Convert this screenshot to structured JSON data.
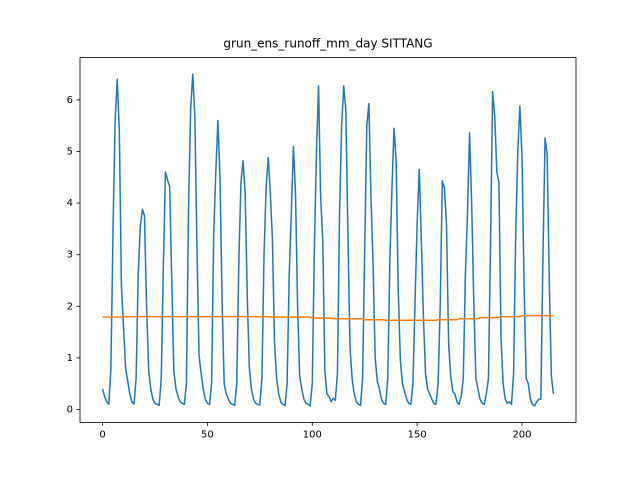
{
  "chart_data": {
    "type": "line",
    "title": "grun_ens_runoff_mm_day SITTANG",
    "x": [
      0,
      1,
      2,
      3,
      4,
      5,
      6,
      7,
      8,
      9,
      10,
      11,
      12,
      13,
      14,
      15,
      16,
      17,
      18,
      19,
      20,
      21,
      22,
      23,
      24,
      25,
      26,
      27,
      28,
      29,
      30,
      31,
      32,
      33,
      34,
      35,
      36,
      37,
      38,
      39,
      40,
      41,
      42,
      43,
      44,
      45,
      46,
      47,
      48,
      49,
      50,
      51,
      52,
      53,
      54,
      55,
      56,
      57,
      58,
      59,
      60,
      61,
      62,
      63,
      64,
      65,
      66,
      67,
      68,
      69,
      70,
      71,
      72,
      73,
      74,
      75,
      76,
      77,
      78,
      79,
      80,
      81,
      82,
      83,
      84,
      85,
      86,
      87,
      88,
      89,
      90,
      91,
      92,
      93,
      94,
      95,
      96,
      97,
      98,
      99,
      100,
      101,
      102,
      103,
      104,
      105,
      106,
      107,
      108,
      109,
      110,
      111,
      112,
      113,
      114,
      115,
      116,
      117,
      118,
      119,
      120,
      121,
      122,
      123,
      124,
      125,
      126,
      127,
      128,
      129,
      130,
      131,
      132,
      133,
      134,
      135,
      136,
      137,
      138,
      139,
      140,
      141,
      142,
      143,
      144,
      145,
      146,
      147,
      148,
      149,
      150,
      151,
      152,
      153,
      154,
      155,
      156,
      157,
      158,
      159,
      160,
      161,
      162,
      163,
      164,
      165,
      166,
      167,
      168,
      169,
      170,
      171,
      172,
      173,
      174,
      175,
      176,
      177,
      178,
      179,
      180,
      181,
      182,
      183,
      184,
      185,
      186,
      187,
      188,
      189,
      190,
      191,
      192,
      193,
      194,
      195,
      196,
      197,
      198,
      199,
      200,
      201,
      202,
      203,
      204,
      205,
      206,
      207,
      208,
      209,
      210,
      211,
      212,
      213,
      214,
      215
    ],
    "series": [
      {
        "color": "#1f77b4",
        "values": [
          0.4,
          0.25,
          0.15,
          0.1,
          0.8,
          3.5,
          5.6,
          6.4,
          5.4,
          2.4,
          1.6,
          0.8,
          0.55,
          0.3,
          0.15,
          0.1,
          0.6,
          2.6,
          3.55,
          3.88,
          3.75,
          2.0,
          0.75,
          0.4,
          0.2,
          0.12,
          0.1,
          0.08,
          0.6,
          2.8,
          4.6,
          4.45,
          4.32,
          2.5,
          0.75,
          0.4,
          0.25,
          0.15,
          0.12,
          0.1,
          0.5,
          3.9,
          5.8,
          6.5,
          5.7,
          3.2,
          1.05,
          0.7,
          0.4,
          0.2,
          0.12,
          0.1,
          0.5,
          3.4,
          4.6,
          5.6,
          4.5,
          2.1,
          0.5,
          0.3,
          0.2,
          0.12,
          0.1,
          0.08,
          0.5,
          2.9,
          4.4,
          4.82,
          4.2,
          2.2,
          0.8,
          0.4,
          0.2,
          0.12,
          0.1,
          0.09,
          0.6,
          3.0,
          4.3,
          4.88,
          4.2,
          3.3,
          1.3,
          0.6,
          0.3,
          0.15,
          0.1,
          0.08,
          0.5,
          2.6,
          3.8,
          5.1,
          4.2,
          2.0,
          0.65,
          0.4,
          0.2,
          0.12,
          0.1,
          0.07,
          0.5,
          3.1,
          5.0,
          6.27,
          4.1,
          3.3,
          0.75,
          0.3,
          0.25,
          0.15,
          0.22,
          0.18,
          0.7,
          3.8,
          5.5,
          6.27,
          5.8,
          3.4,
          1.2,
          0.6,
          0.3,
          0.15,
          0.1,
          0.08,
          0.6,
          3.1,
          5.5,
          5.93,
          4.1,
          2.8,
          1.0,
          0.55,
          0.4,
          0.2,
          0.12,
          0.1,
          0.6,
          2.9,
          4.3,
          5.45,
          4.8,
          2.3,
          0.95,
          0.5,
          0.35,
          0.2,
          0.12,
          0.1,
          0.5,
          2.1,
          3.6,
          4.65,
          3.3,
          1.8,
          0.7,
          0.4,
          0.3,
          0.2,
          0.12,
          0.1,
          0.5,
          2.0,
          4.43,
          4.3,
          3.6,
          1.3,
          0.65,
          0.35,
          0.3,
          0.15,
          0.1,
          0.25,
          0.6,
          2.6,
          3.8,
          5.36,
          4.0,
          2.1,
          0.6,
          0.4,
          0.2,
          0.12,
          0.1,
          0.3,
          0.6,
          3.2,
          6.16,
          5.7,
          4.6,
          4.4,
          1.4,
          0.5,
          0.2,
          0.12,
          0.15,
          0.1,
          0.7,
          3.4,
          5.0,
          5.88,
          4.9,
          2.4,
          0.6,
          0.5,
          0.2,
          0.1,
          0.07,
          0.15,
          0.2,
          0.2,
          3.0,
          5.26,
          4.95,
          2.5,
          0.65,
          0.3
        ]
      },
      {
        "color": "#ff7f0e",
        "values": [
          1.79,
          1.79,
          1.79,
          1.79,
          1.79,
          1.79,
          1.79,
          1.79,
          1.79,
          1.79,
          1.8,
          1.8,
          1.8,
          1.8,
          1.8,
          1.8,
          1.8,
          1.8,
          1.8,
          1.8,
          1.8,
          1.8,
          1.8,
          1.8,
          1.8,
          1.8,
          1.8,
          1.8,
          1.8,
          1.8,
          1.8,
          1.8,
          1.8,
          1.8,
          1.8,
          1.8,
          1.8,
          1.8,
          1.8,
          1.8,
          1.8,
          1.8,
          1.8,
          1.8,
          1.8,
          1.8,
          1.8,
          1.8,
          1.8,
          1.8,
          1.8,
          1.8,
          1.8,
          1.8,
          1.8,
          1.8,
          1.8,
          1.8,
          1.8,
          1.8,
          1.8,
          1.8,
          1.8,
          1.8,
          1.8,
          1.8,
          1.8,
          1.8,
          1.8,
          1.8,
          1.8,
          1.8,
          1.8,
          1.8,
          1.8,
          1.8,
          1.8,
          1.8,
          1.8,
          1.8,
          1.79,
          1.79,
          1.79,
          1.79,
          1.79,
          1.79,
          1.79,
          1.79,
          1.79,
          1.79,
          1.79,
          1.79,
          1.79,
          1.79,
          1.79,
          1.79,
          1.79,
          1.79,
          1.79,
          1.79,
          1.77,
          1.77,
          1.77,
          1.77,
          1.77,
          1.77,
          1.77,
          1.77,
          1.77,
          1.77,
          1.76,
          1.76,
          1.76,
          1.76,
          1.76,
          1.76,
          1.76,
          1.76,
          1.76,
          1.76,
          1.76,
          1.76,
          1.76,
          1.76,
          1.76,
          1.74,
          1.74,
          1.74,
          1.74,
          1.74,
          1.74,
          1.74,
          1.74,
          1.74,
          1.74,
          1.73,
          1.73,
          1.73,
          1.73,
          1.73,
          1.73,
          1.73,
          1.73,
          1.73,
          1.73,
          1.73,
          1.73,
          1.73,
          1.73,
          1.73,
          1.73,
          1.73,
          1.73,
          1.73,
          1.73,
          1.73,
          1.73,
          1.73,
          1.73,
          1.73,
          1.74,
          1.74,
          1.74,
          1.74,
          1.74,
          1.74,
          1.74,
          1.74,
          1.74,
          1.74,
          1.76,
          1.76,
          1.76,
          1.76,
          1.76,
          1.76,
          1.76,
          1.76,
          1.76,
          1.76,
          1.78,
          1.78,
          1.78,
          1.78,
          1.78,
          1.78,
          1.78,
          1.78,
          1.78,
          1.78,
          1.8,
          1.8,
          1.8,
          1.8,
          1.8,
          1.8,
          1.8,
          1.8,
          1.8,
          1.8,
          1.82,
          1.82,
          1.82,
          1.82,
          1.82,
          1.82,
          1.82,
          1.82,
          1.82,
          1.82,
          1.82,
          1.82,
          1.82,
          1.82,
          1.82,
          1.82
        ]
      }
    ],
    "xlim": [
      -10.75,
      225.75
    ],
    "xticks": [
      0,
      50,
      100,
      150,
      200
    ],
    "ylim": [
      -0.25,
      6.82
    ],
    "yticks": [
      0,
      1,
      2,
      3,
      4,
      5,
      6
    ]
  }
}
